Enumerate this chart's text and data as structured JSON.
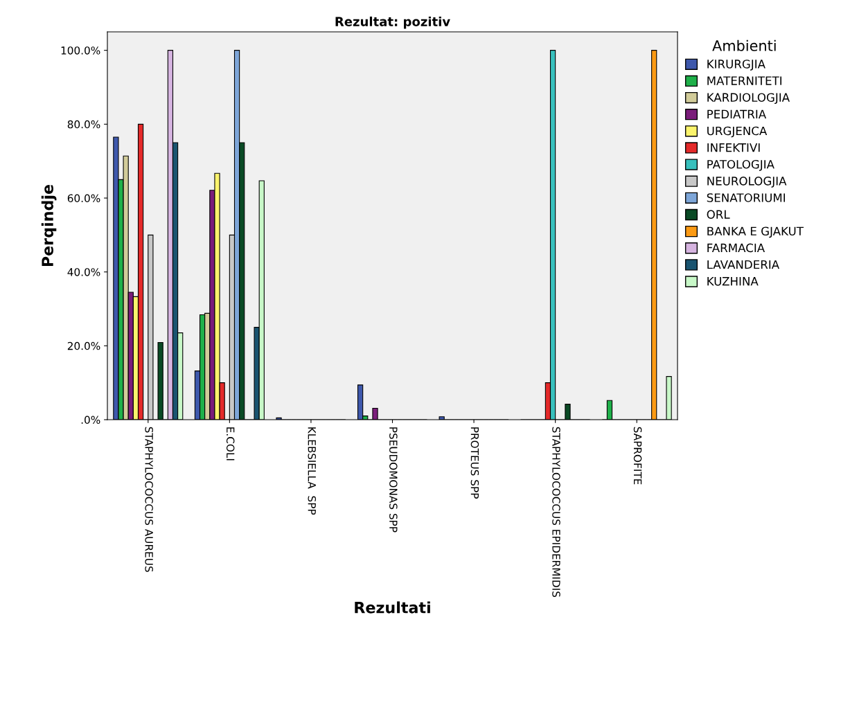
{
  "chart_data": {
    "type": "bar",
    "title": "Rezultat: pozitiv",
    "xlabel": "Rezultati",
    "ylabel": "Perqindje",
    "legend_title": "Ambienti",
    "legend": "right",
    "grid": false,
    "categories": [
      "STAPHYLOCOCCUS AUREUS",
      "E.COLI",
      "KLEBSIELLA  SPP",
      "PSEUDOMONAS SPP",
      "PROTEUS SPP",
      "STAPHYLOCOCCUS EPIDERMIDIS",
      "SAPROFITE"
    ],
    "ylim": [
      0,
      105
    ],
    "yticks": [
      {
        "value": 0,
        "label": ".0%"
      },
      {
        "value": 20,
        "label": "20.0%"
      },
      {
        "value": 40,
        "label": "40.0%"
      },
      {
        "value": 60,
        "label": "60.0%"
      },
      {
        "value": 80,
        "label": "80.0%"
      },
      {
        "value": 100,
        "label": "100.0%"
      }
    ],
    "series": [
      {
        "name": "KIRURGJIA",
        "color": "#3e58ac",
        "values": [
          76.5,
          13.2,
          0.5,
          9.4,
          0.8,
          0,
          0
        ]
      },
      {
        "name": "MATERNITETI",
        "color": "#1fb04a",
        "values": [
          65,
          28.4,
          0,
          1,
          0,
          0,
          5.2
        ]
      },
      {
        "name": "KARDIOLOGJIA",
        "color": "#d2cc9a",
        "values": [
          71.4,
          28.8,
          0,
          0,
          0,
          0,
          0
        ]
      },
      {
        "name": "PEDIATRIA",
        "color": "#7b1d7b",
        "values": [
          34.5,
          62.1,
          0,
          3.1,
          0,
          0,
          0
        ]
      },
      {
        "name": "URGJENCA",
        "color": "#fbf46c",
        "values": [
          33.3,
          66.7,
          0,
          0,
          0,
          0,
          0
        ]
      },
      {
        "name": "INFEKTIVI",
        "color": "#e42a2a",
        "values": [
          80,
          10,
          0,
          0,
          0,
          10,
          0
        ]
      },
      {
        "name": "PATOLOGJIA",
        "color": "#38c0bd",
        "values": [
          0,
          0,
          0,
          0,
          0,
          100,
          0
        ]
      },
      {
        "name": "NEUROLOGJIA",
        "color": "#c8c8c8",
        "values": [
          50,
          50,
          0,
          0,
          0,
          0,
          0
        ]
      },
      {
        "name": "SENATORIUMI",
        "color": "#7ea6d8",
        "values": [
          0,
          100,
          0,
          0,
          0,
          0,
          0
        ]
      },
      {
        "name": "ORL",
        "color": "#0a4a25",
        "values": [
          20.9,
          75,
          0,
          0,
          0,
          4.2,
          0
        ]
      },
      {
        "name": "BANKA E GJAKUT",
        "color": "#fb9a14",
        "values": [
          0,
          0,
          0,
          0,
          0,
          0,
          100
        ]
      },
      {
        "name": "FARMACIA",
        "color": "#d6b4e0",
        "values": [
          100,
          0,
          0,
          0,
          0,
          0,
          0
        ]
      },
      {
        "name": "LAVANDERIA",
        "color": "#1a5470",
        "values": [
          75,
          25,
          0,
          0,
          0,
          0,
          0
        ]
      },
      {
        "name": "KUZHINA",
        "color": "#c8f8c8",
        "values": [
          23.5,
          64.7,
          0,
          0,
          0,
          0,
          11.7
        ]
      }
    ]
  }
}
